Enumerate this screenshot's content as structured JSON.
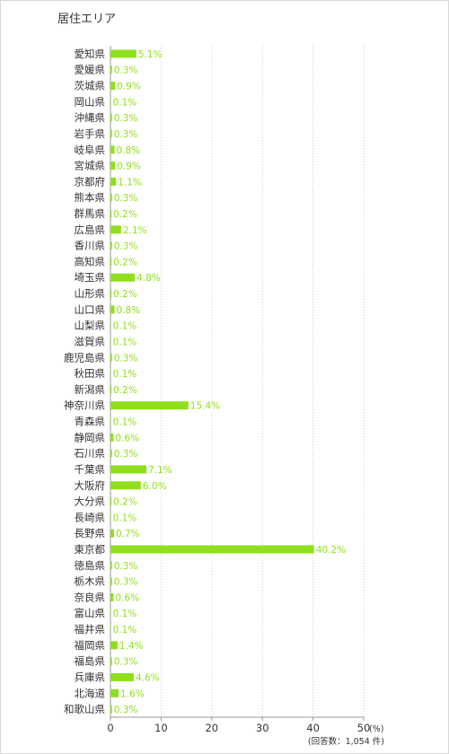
{
  "title": "居住エリア",
  "chart_data": {
    "type": "bar",
    "orientation": "horizontal",
    "categories": [
      "愛知県",
      "愛媛県",
      "茨城県",
      "岡山県",
      "沖縄県",
      "岩手県",
      "岐阜県",
      "宮城県",
      "京都府",
      "熊本県",
      "群馬県",
      "広島県",
      "香川県",
      "高知県",
      "埼玉県",
      "山形県",
      "山口県",
      "山梨県",
      "滋賀県",
      "鹿児島県",
      "秋田県",
      "新潟県",
      "神奈川県",
      "青森県",
      "静岡県",
      "石川県",
      "千葉県",
      "大阪府",
      "大分県",
      "長崎県",
      "長野県",
      "東京都",
      "徳島県",
      "栃木県",
      "奈良県",
      "富山県",
      "福井県",
      "福岡県",
      "福島県",
      "兵庫県",
      "北海道",
      "和歌山県"
    ],
    "values": [
      5.1,
      0.3,
      0.9,
      0.1,
      0.3,
      0.3,
      0.8,
      0.9,
      1.1,
      0.3,
      0.2,
      2.1,
      0.3,
      0.2,
      4.8,
      0.2,
      0.8,
      0.1,
      0.1,
      0.3,
      0.1,
      0.2,
      15.4,
      0.1,
      0.6,
      0.3,
      7.1,
      6.0,
      0.2,
      0.1,
      0.7,
      40.2,
      0.3,
      0.3,
      0.6,
      0.1,
      0.1,
      1.4,
      0.3,
      4.6,
      1.6,
      0.3
    ],
    "value_labels": [
      "5.1%",
      "0.3%",
      "0.9%",
      "0.1%",
      "0.3%",
      "0.3%",
      "0.8%",
      "0.9%",
      "1.1%",
      "0.3%",
      "0.2%",
      "2.1%",
      "0.3%",
      "0.2%",
      "4.8%",
      "0.2%",
      "0.8%",
      "0.1%",
      "0.1%",
      "0.3%",
      "0.1%",
      "0.2%",
      "15.4%",
      "0.1%",
      "0.6%",
      "0.3%",
      "7.1%",
      "6.0%",
      "0.2%",
      "0.1%",
      "0.7%",
      "40.2%",
      "0.3%",
      "0.3%",
      "0.6%",
      "0.1%",
      "0.1%",
      "1.4%",
      "0.3%",
      "4.6%",
      "1.6%",
      "0.3%"
    ],
    "xlim": [
      0,
      50
    ],
    "xticks": [
      "0",
      "10",
      "20",
      "30",
      "40",
      "50"
    ],
    "unit_label": "(%)",
    "note": "(回答数：1,054 件)",
    "bar_color": "#8fe01b",
    "grid": true
  }
}
